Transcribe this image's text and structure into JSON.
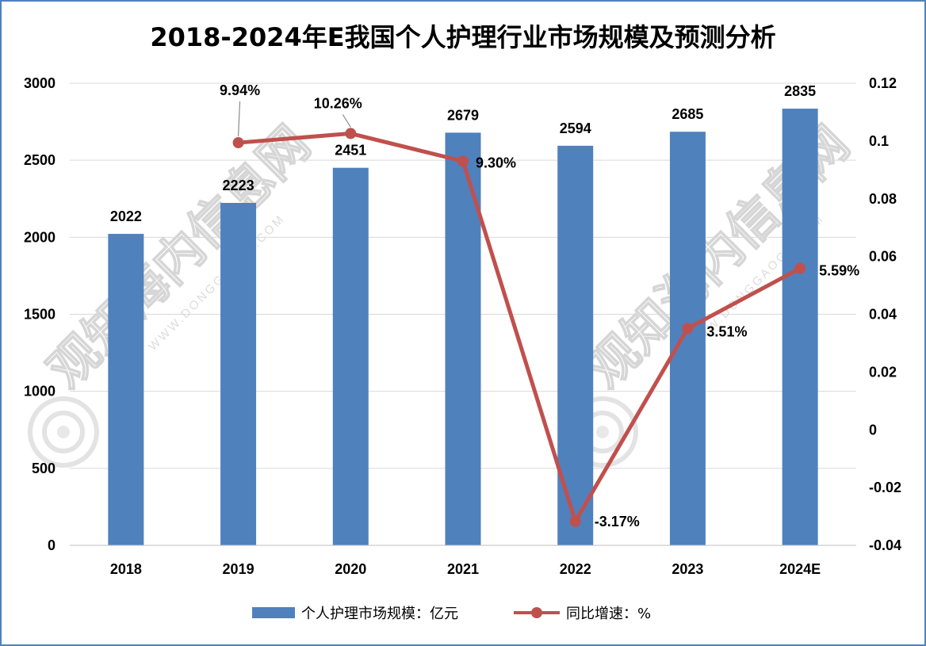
{
  "chart_data": {
    "type": "bar+line",
    "title": "2018-2024年E我国个人护理行业市场规模及预测分析",
    "categories": [
      "2018",
      "2019",
      "2020",
      "2021",
      "2022",
      "2023",
      "2024E"
    ],
    "series": [
      {
        "name": "个人护理市场规模：亿元",
        "type": "bar",
        "axis": "left",
        "color": "#4f81bd",
        "values": [
          2022,
          2223,
          2451,
          2679,
          2594,
          2685,
          2835
        ],
        "labels": [
          "2022",
          "2223",
          "2451",
          "2679",
          "2594",
          "2685",
          "2835"
        ]
      },
      {
        "name": "同比增速：%",
        "type": "line",
        "axis": "right",
        "color": "#c0504d",
        "values": [
          null,
          0.0994,
          0.1026,
          0.093,
          -0.0317,
          0.0351,
          0.0559
        ],
        "labels": [
          "",
          "9.94%",
          "10.26%",
          "9.30%",
          "-3.17%",
          "3.51%",
          "5.59%"
        ]
      }
    ],
    "left_axis": {
      "min": 0,
      "max": 3000,
      "ticks": [
        "0",
        "500",
        "1000",
        "1500",
        "2000",
        "2500",
        "3000"
      ]
    },
    "right_axis": {
      "min": -0.04,
      "max": 0.12,
      "ticks": [
        "-0.04",
        "-0.02",
        "0",
        "0.02",
        "0.04",
        "0.06",
        "0.08",
        "0.1",
        "0.12"
      ]
    },
    "grid": true,
    "legend": "bottom"
  },
  "watermark": {
    "text": "观知海内信息网",
    "sub": "WWW.DONGGAOGB.COM"
  }
}
